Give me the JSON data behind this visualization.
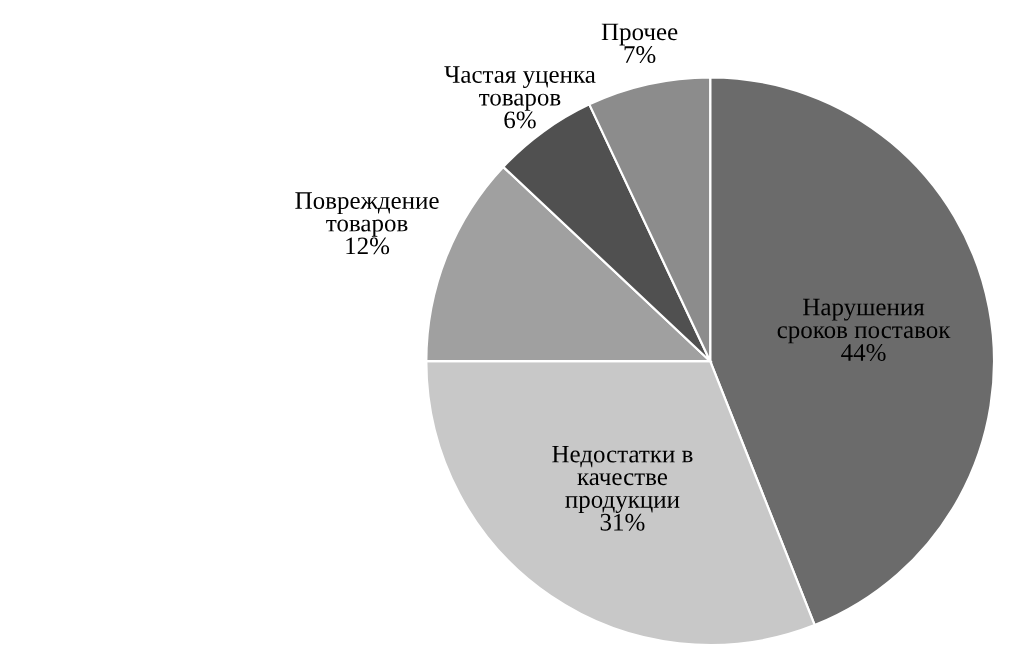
{
  "chart_data": {
    "type": "pie",
    "categories": [
      "Нарушения\nсроков поставок",
      "Недостатки в\nкачестве\nпродукции",
      "Повреждение\nтоваров",
      "Частая уценка\nтоваров",
      "Прочее"
    ],
    "values": [
      44,
      31,
      12,
      6,
      7
    ],
    "value_labels": [
      "44%",
      "31%",
      "12%",
      "6%",
      "7%"
    ],
    "colors": [
      "#6b6b6b",
      "#c8c8c8",
      "#a0a0a0",
      "#505050",
      "#8c8c8c"
    ]
  }
}
